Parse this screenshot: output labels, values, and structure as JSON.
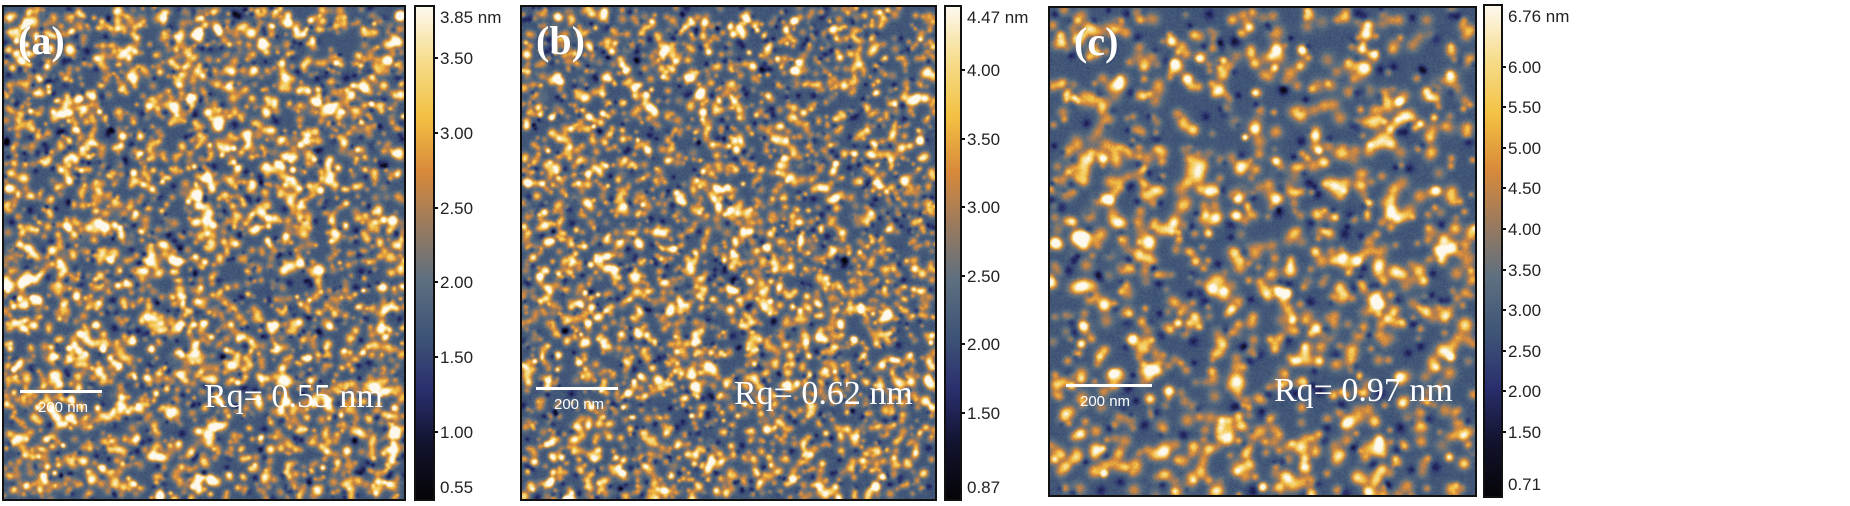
{
  "figure": {
    "description": "AFM height images of three films with roughness values",
    "colormap": [
      "#050508",
      "#12132e",
      "#2a2f6e",
      "#3f5577",
      "#5d6f80",
      "#9a7a5e",
      "#d98a3a",
      "#f3c143",
      "#f6dc8a",
      "#fdf8ee"
    ],
    "background_color": "#3e5676"
  },
  "panels": [
    {
      "letter": "(a)",
      "rq": "Rq= 0.55 nm",
      "scale_bar": "200 nm",
      "colorbar": {
        "max_label": "3.85 nm",
        "min": 0.55,
        "max": 3.85,
        "ticks": [
          "3.85 nm",
          "3.50",
          "3.00",
          "2.50",
          "2.00",
          "1.50",
          "1.00",
          "0.55"
        ],
        "tick_values": [
          3.85,
          3.5,
          3.0,
          2.5,
          2.0,
          1.5,
          1.0,
          0.55
        ]
      },
      "texture": {
        "blob_density": 0.055,
        "blob_radius": 3.2,
        "seed": 11
      }
    },
    {
      "letter": "(b)",
      "rq": "Rq= 0.62 nm",
      "scale_bar": "200 nm",
      "colorbar": {
        "max_label": "4.47 nm",
        "min": 0.87,
        "max": 4.47,
        "ticks": [
          "4.47 nm",
          "4.00",
          "3.50",
          "3.00",
          "2.50",
          "2.00",
          "1.50",
          "0.87"
        ],
        "tick_values": [
          4.47,
          4.0,
          3.5,
          3.0,
          2.5,
          2.0,
          1.5,
          0.87
        ]
      },
      "texture": {
        "blob_density": 0.05,
        "blob_radius": 3.0,
        "seed": 23
      }
    },
    {
      "letter": "(c)",
      "rq": "Rq= 0.97 nm",
      "scale_bar": "200 nm",
      "colorbar": {
        "max_label": "6.76 nm",
        "min": 0.71,
        "max": 6.76,
        "ticks": [
          "6.76 nm",
          "6.00",
          "5.50",
          "5.00",
          "4.50",
          "4.00",
          "3.50",
          "3.00",
          "2.50",
          "2.00",
          "1.50",
          "0.71"
        ],
        "tick_values": [
          6.76,
          6.0,
          5.5,
          5.0,
          4.5,
          4.0,
          3.5,
          3.0,
          2.5,
          2.0,
          1.5,
          0.71
        ]
      },
      "texture": {
        "blob_density": 0.028,
        "blob_radius": 4.6,
        "seed": 37
      }
    }
  ]
}
